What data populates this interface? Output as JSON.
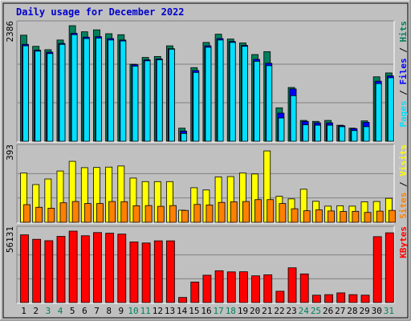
{
  "chart_data": {
    "type": "bar",
    "title": "Daily usage for December 2022",
    "days": [
      1,
      2,
      3,
      4,
      5,
      6,
      7,
      8,
      9,
      10,
      11,
      12,
      13,
      14,
      15,
      16,
      17,
      18,
      19,
      20,
      21,
      22,
      23,
      24,
      25,
      26,
      27,
      28,
      29,
      30,
      31
    ],
    "weekend_days": [
      3,
      4,
      10,
      11,
      17,
      18,
      24,
      25,
      31
    ],
    "colors": {
      "hits": "#00805c",
      "files": "#0000ff",
      "pages": "#00e0ff",
      "visits": "#ffff00",
      "sites": "#ff8000",
      "kbytes": "#ff0000",
      "panel_bg": "#c0c0c0",
      "frame": "#ffffff",
      "weekday_label": "#000000",
      "weekend_label": "#00805c"
    },
    "panels": [
      {
        "id": "hits-panel",
        "ymax_label": "2386",
        "ymax": 2386,
        "legend": [
          {
            "text": "Pages",
            "color": "#00e0ff"
          },
          {
            "text": " / ",
            "color": "#000000"
          },
          {
            "text": "Files",
            "color": "#0000ff"
          },
          {
            "text": " / ",
            "color": "#000000"
          },
          {
            "text": "Hits",
            "color": "#00805c"
          }
        ],
        "series": [
          {
            "name": "Hits",
            "values": [
              2190,
              1960,
              1890,
              2090,
              2386,
              2260,
              2300,
              2220,
              2200,
              1590,
              1730,
              1750,
              1970,
              270,
              1520,
              2040,
              2210,
              2110,
              2030,
              1790,
              1850,
              690,
              1110,
              430,
              410,
              430,
              330,
              270,
              420,
              1330,
              1410
            ]
          },
          {
            "name": "Files",
            "values": [
              2000,
              1880,
              1840,
              2020,
              2230,
              2150,
              2160,
              2120,
              2090,
              1580,
              1680,
              1700,
              1910,
              210,
              1460,
              1970,
              2120,
              2060,
              1980,
              1690,
              1610,
              580,
              1080,
              410,
              380,
              380,
              320,
              260,
              390,
              1240,
              1350
            ]
          },
          {
            "name": "Pages",
            "values": [
              1970,
              1860,
              1810,
              2000,
              2200,
              2120,
              2130,
              2090,
              2070,
              1550,
              1660,
              1680,
              1900,
              160,
              1420,
              1940,
              2090,
              2040,
              1960,
              1650,
              1560,
              480,
              940,
              340,
              330,
              330,
              300,
              220,
              300,
              1190,
              1310
            ]
          }
        ]
      },
      {
        "id": "visits-panel",
        "ymax_label": "393",
        "ymax": 393,
        "legend": [
          {
            "text": "Sites",
            "color": "#ff8000"
          },
          {
            "text": " / ",
            "color": "#000000"
          },
          {
            "text": "Visits",
            "color": "#ffff00"
          }
        ],
        "series": [
          {
            "name": "Visits",
            "values": [
              265,
              203,
              233,
              276,
              328,
              294,
              295,
              297,
              303,
              238,
              219,
              219,
              219,
              65,
              186,
              174,
              244,
              246,
              265,
              260,
              384,
              140,
              126,
              178,
              113,
              87,
              89,
              87,
              110,
              112,
              129
            ]
          },
          {
            "name": "Sites",
            "values": [
              95,
              81,
              76,
              105,
              112,
              101,
              101,
              112,
              111,
              89,
              90,
              86,
              90,
              64,
              96,
              93,
              107,
              110,
              112,
              122,
              122,
              101,
              73,
              62,
              67,
              61,
              58,
              59,
              53,
              60,
              64
            ]
          }
        ]
      },
      {
        "id": "kbytes-panel",
        "ymax_label": "56131",
        "ymax": 56131,
        "legend": [
          {
            "text": "KBytes",
            "color": "#ff0000"
          }
        ],
        "series": [
          {
            "name": "KBytes",
            "values": [
              53200,
              49700,
              48600,
              52000,
              56131,
              52500,
              55000,
              54500,
              53800,
              47600,
              46800,
              48500,
              48500,
              4000,
              16100,
              21500,
              25000,
              24100,
              24200,
              21000,
              21800,
              8900,
              27300,
              22500,
              5800,
              6200,
              7600,
              6200,
              5800,
              51800,
              54800
            ]
          }
        ]
      }
    ]
  }
}
